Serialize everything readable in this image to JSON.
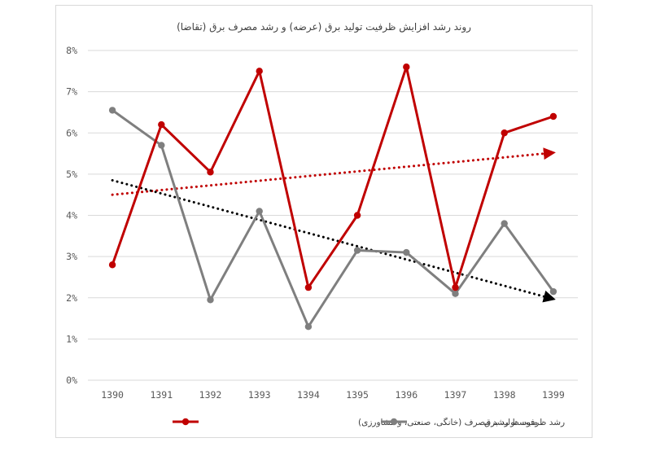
{
  "chart_data": {
    "type": "line",
    "title": "روند رشد افزایش ظرفیت تولید برق (عرضه) و رشد مصرف برق (تقاضا)",
    "xlabel": "",
    "ylabel": "",
    "categories": [
      "1390",
      "1391",
      "1392",
      "1393",
      "1394",
      "1395",
      "1396",
      "1397",
      "1398",
      "1399"
    ],
    "y_ticks": [
      "0%",
      "1%",
      "2%",
      "3%",
      "4%",
      "5%",
      "6%",
      "7%",
      "8%"
    ],
    "ylim": [
      0,
      8
    ],
    "grid": true,
    "legend_position": "bottom",
    "series": [
      {
        "name": "متوسط رشد مصرف (خانگی، صنعتی، و کشاورزی)",
        "color": "#c00000",
        "values": [
          2.8,
          6.2,
          5.05,
          7.5,
          2.25,
          4.0,
          7.6,
          2.25,
          6.0,
          6.4
        ],
        "trend": [
          4.5,
          5.52
        ],
        "trend_color": "#c00000"
      },
      {
        "name": "رشد ظرفیت تولید برق",
        "color": "#7f7f7f",
        "values": [
          6.55,
          5.7,
          1.95,
          4.1,
          1.3,
          3.15,
          3.1,
          2.1,
          3.8,
          2.15
        ],
        "trend": [
          4.85,
          1.97
        ],
        "trend_color": "#000000"
      }
    ]
  }
}
